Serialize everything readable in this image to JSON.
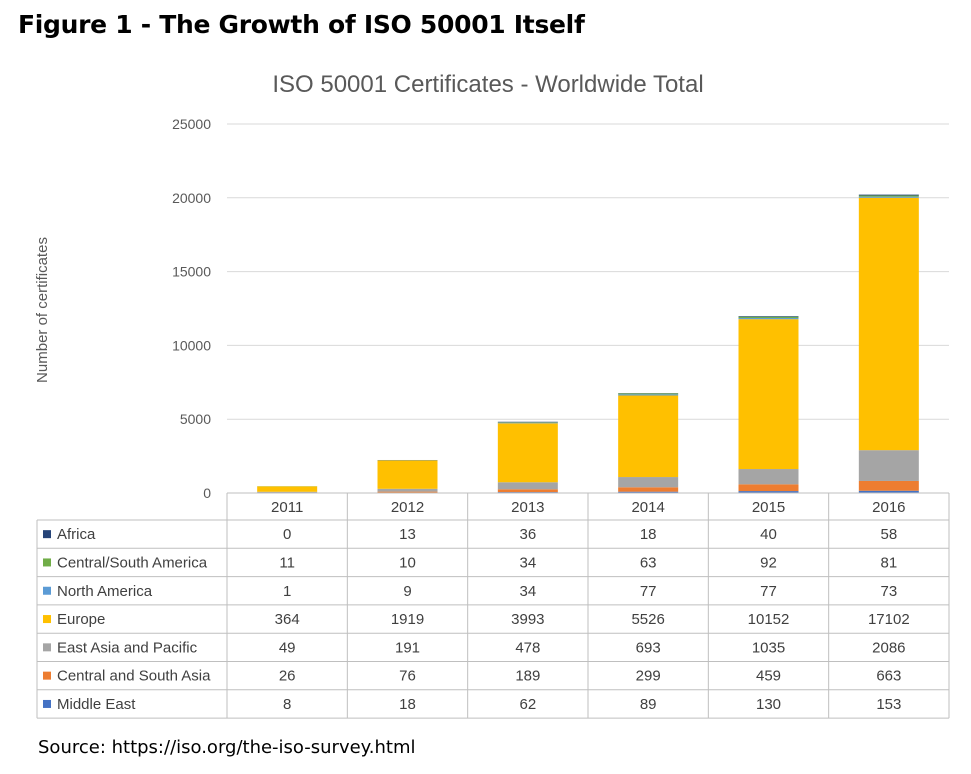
{
  "figure_title": "Figure 1 - The Growth of ISO 50001 Itself",
  "source": "Source: https://iso.org/the-iso-survey.html",
  "chart_data": {
    "type": "bar",
    "stacked": true,
    "title": "ISO 50001 Certificates - Worldwide Total",
    "xlabel": "",
    "ylabel": "Number of certificates",
    "ylim": [
      0,
      25000
    ],
    "yticks": [
      0,
      5000,
      10000,
      15000,
      20000,
      25000
    ],
    "grid": true,
    "legend": "data-table",
    "categories": [
      "2011",
      "2012",
      "2013",
      "2014",
      "2015",
      "2016"
    ],
    "series": [
      {
        "name": "Africa",
        "color": "#264478",
        "values": [
          0,
          13,
          36,
          18,
          40,
          58
        ]
      },
      {
        "name": "Central/South America",
        "color": "#70AD47",
        "values": [
          11,
          10,
          34,
          63,
          92,
          81
        ]
      },
      {
        "name": "North America",
        "color": "#5B9BD5",
        "values": [
          1,
          9,
          34,
          77,
          77,
          73
        ]
      },
      {
        "name": "Europe",
        "color": "#FFC000",
        "values": [
          364,
          1919,
          3993,
          5526,
          10152,
          17102
        ]
      },
      {
        "name": "East Asia and Pacific",
        "color": "#A5A5A5",
        "values": [
          49,
          191,
          478,
          693,
          1035,
          2086
        ]
      },
      {
        "name": "Central and South Asia",
        "color": "#ED7D31",
        "values": [
          26,
          76,
          189,
          299,
          459,
          663
        ]
      },
      {
        "name": "Middle East",
        "color": "#4472C4",
        "values": [
          8,
          18,
          62,
          89,
          130,
          153
        ]
      }
    ]
  }
}
